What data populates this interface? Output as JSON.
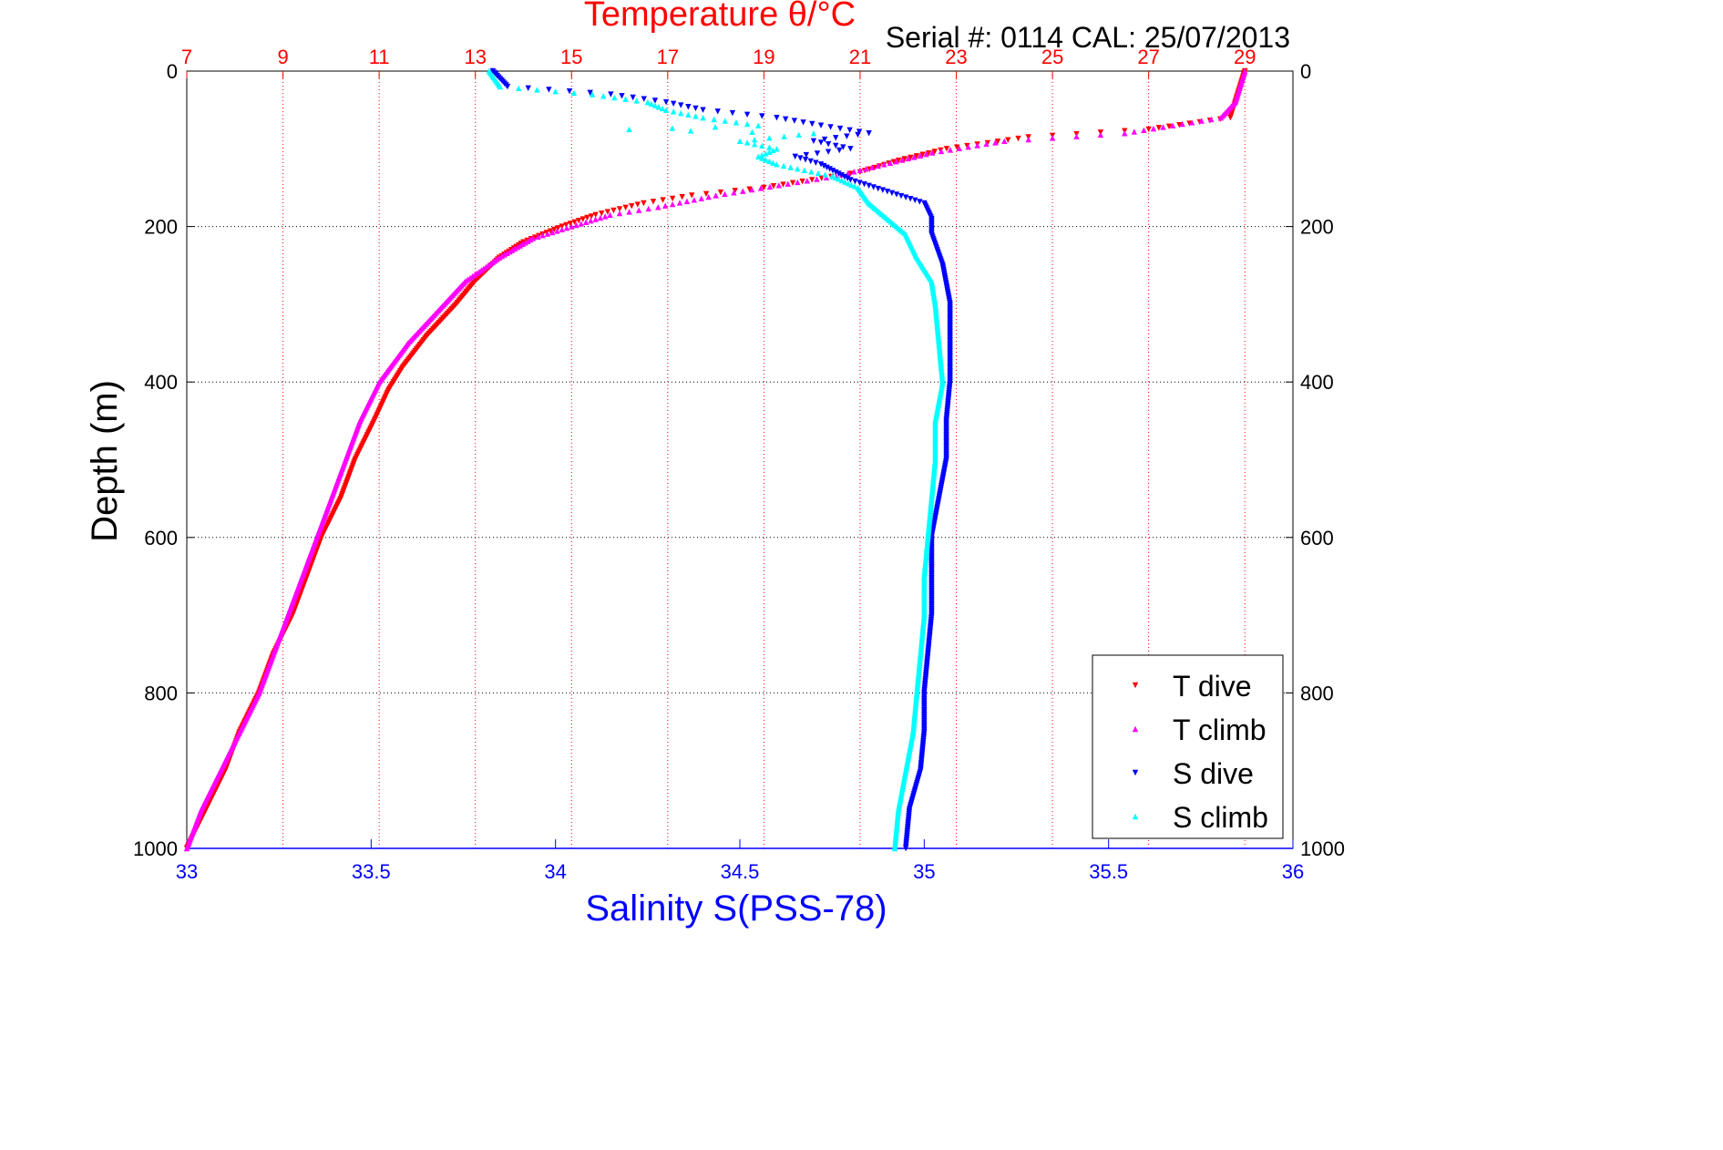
{
  "header": {
    "title": "Temperature θ/°C",
    "serial": "Serial #: 0114  CAL: 25/07/2013"
  },
  "colors": {
    "temperature_axis": "#ff0000",
    "salinity_axis": "#0000ff",
    "t_dive": "#ff0000",
    "t_climb": "#ff00ff",
    "s_dive": "#0000ff",
    "s_climb": "#00ffff",
    "grid_depth": "#000000",
    "grid_temperature": "#ff0000"
  },
  "chart_data": {
    "type": "scatter",
    "title": "Temperature θ/°C",
    "xlabel": "Salinity S(PSS-78)",
    "ylabel": "Depth (m)",
    "top_axis": {
      "label": "Temperature θ/°C",
      "range": [
        7,
        30
      ],
      "ticks": [
        7,
        9,
        11,
        13,
        15,
        17,
        19,
        21,
        23,
        25,
        27,
        29
      ]
    },
    "bottom_axis": {
      "label": "Salinity S(PSS-78)",
      "range": [
        33,
        36
      ],
      "ticks": [
        33,
        33.5,
        34,
        34.5,
        35,
        35.5,
        36
      ]
    },
    "y_axis": {
      "label": "Depth (m)",
      "range": [
        0,
        1000
      ],
      "reversed": true,
      "ticks": [
        0,
        200,
        400,
        600,
        800,
        1000
      ]
    },
    "grid": true,
    "legend_position": "bottom-right",
    "series": [
      {
        "name": "T dive",
        "axis": "temperature",
        "marker": "triangle-down",
        "points": [
          [
            29.0,
            0
          ],
          [
            28.8,
            40
          ],
          [
            28.7,
            60
          ],
          [
            27.0,
            75
          ],
          [
            24.5,
            85
          ],
          [
            22.8,
            100
          ],
          [
            21.8,
            115
          ],
          [
            21.0,
            130
          ],
          [
            20.0,
            140
          ],
          [
            19.0,
            150
          ],
          [
            17.5,
            160
          ],
          [
            16.5,
            170
          ],
          [
            15.5,
            185
          ],
          [
            14.8,
            200
          ],
          [
            14.0,
            220
          ],
          [
            13.5,
            240
          ],
          [
            13.0,
            270
          ],
          [
            12.6,
            300
          ],
          [
            12.0,
            340
          ],
          [
            11.5,
            380
          ],
          [
            11.2,
            410
          ],
          [
            10.9,
            450
          ],
          [
            10.5,
            500
          ],
          [
            10.2,
            550
          ],
          [
            9.8,
            600
          ],
          [
            9.5,
            650
          ],
          [
            9.2,
            700
          ],
          [
            8.8,
            750
          ],
          [
            8.5,
            800
          ],
          [
            8.1,
            850
          ],
          [
            7.8,
            900
          ],
          [
            7.4,
            950
          ],
          [
            7.0,
            1000
          ]
        ]
      },
      {
        "name": "T climb",
        "axis": "temperature",
        "marker": "triangle-up",
        "points": [
          [
            29.0,
            0
          ],
          [
            28.8,
            40
          ],
          [
            28.5,
            60
          ],
          [
            26.5,
            80
          ],
          [
            24.0,
            90
          ],
          [
            22.5,
            105
          ],
          [
            21.5,
            120
          ],
          [
            20.5,
            135
          ],
          [
            19.5,
            145
          ],
          [
            18.0,
            160
          ],
          [
            16.8,
            175
          ],
          [
            15.8,
            185
          ],
          [
            15.0,
            200
          ],
          [
            14.2,
            215
          ],
          [
            13.5,
            240
          ],
          [
            12.8,
            270
          ],
          [
            12.2,
            310
          ],
          [
            11.6,
            350
          ],
          [
            11.0,
            400
          ],
          [
            10.6,
            450
          ],
          [
            10.3,
            500
          ],
          [
            10.0,
            550
          ],
          [
            9.7,
            600
          ],
          [
            9.4,
            650
          ],
          [
            9.1,
            700
          ],
          [
            8.8,
            750
          ],
          [
            8.5,
            800
          ],
          [
            8.1,
            850
          ],
          [
            7.7,
            900
          ],
          [
            7.3,
            950
          ],
          [
            7.0,
            1000
          ]
        ]
      },
      {
        "name": "S dive",
        "axis": "salinity",
        "marker": "triangle-down",
        "points": [
          [
            33.83,
            0
          ],
          [
            33.87,
            20
          ],
          [
            34.15,
            30
          ],
          [
            34.3,
            40
          ],
          [
            34.4,
            50
          ],
          [
            34.6,
            60
          ],
          [
            34.72,
            70
          ],
          [
            34.85,
            80
          ],
          [
            34.7,
            90
          ],
          [
            34.8,
            100
          ],
          [
            34.65,
            110
          ],
          [
            34.72,
            120
          ],
          [
            34.8,
            140
          ],
          [
            34.9,
            155
          ],
          [
            35.0,
            170
          ],
          [
            35.02,
            190
          ],
          [
            35.02,
            210
          ],
          [
            35.05,
            250
          ],
          [
            35.07,
            300
          ],
          [
            35.07,
            350
          ],
          [
            35.07,
            400
          ],
          [
            35.06,
            450
          ],
          [
            35.06,
            500
          ],
          [
            35.04,
            550
          ],
          [
            35.02,
            600
          ],
          [
            35.02,
            650
          ],
          [
            35.02,
            700
          ],
          [
            35.01,
            750
          ],
          [
            35.0,
            800
          ],
          [
            35.0,
            850
          ],
          [
            34.99,
            900
          ],
          [
            34.96,
            950
          ],
          [
            34.95,
            1000
          ]
        ]
      },
      {
        "name": "S climb",
        "axis": "salinity",
        "marker": "triangle-up",
        "points": [
          [
            33.82,
            0
          ],
          [
            33.85,
            20
          ],
          [
            34.1,
            30
          ],
          [
            34.25,
            40
          ],
          [
            34.3,
            50
          ],
          [
            34.4,
            60
          ],
          [
            34.55,
            70
          ],
          [
            34.2,
            75
          ],
          [
            34.7,
            80
          ],
          [
            34.5,
            90
          ],
          [
            34.6,
            100
          ],
          [
            34.55,
            110
          ],
          [
            34.6,
            120
          ],
          [
            34.75,
            135
          ],
          [
            34.82,
            150
          ],
          [
            34.85,
            170
          ],
          [
            34.9,
            190
          ],
          [
            34.95,
            210
          ],
          [
            34.98,
            240
          ],
          [
            35.02,
            270
          ],
          [
            35.03,
            300
          ],
          [
            35.04,
            350
          ],
          [
            35.05,
            400
          ],
          [
            35.03,
            450
          ],
          [
            35.03,
            500
          ],
          [
            35.02,
            550
          ],
          [
            35.01,
            600
          ],
          [
            35.0,
            650
          ],
          [
            35.0,
            700
          ],
          [
            34.99,
            750
          ],
          [
            34.98,
            800
          ],
          [
            34.97,
            850
          ],
          [
            34.95,
            900
          ],
          [
            34.93,
            950
          ],
          [
            34.92,
            1000
          ]
        ]
      }
    ]
  }
}
